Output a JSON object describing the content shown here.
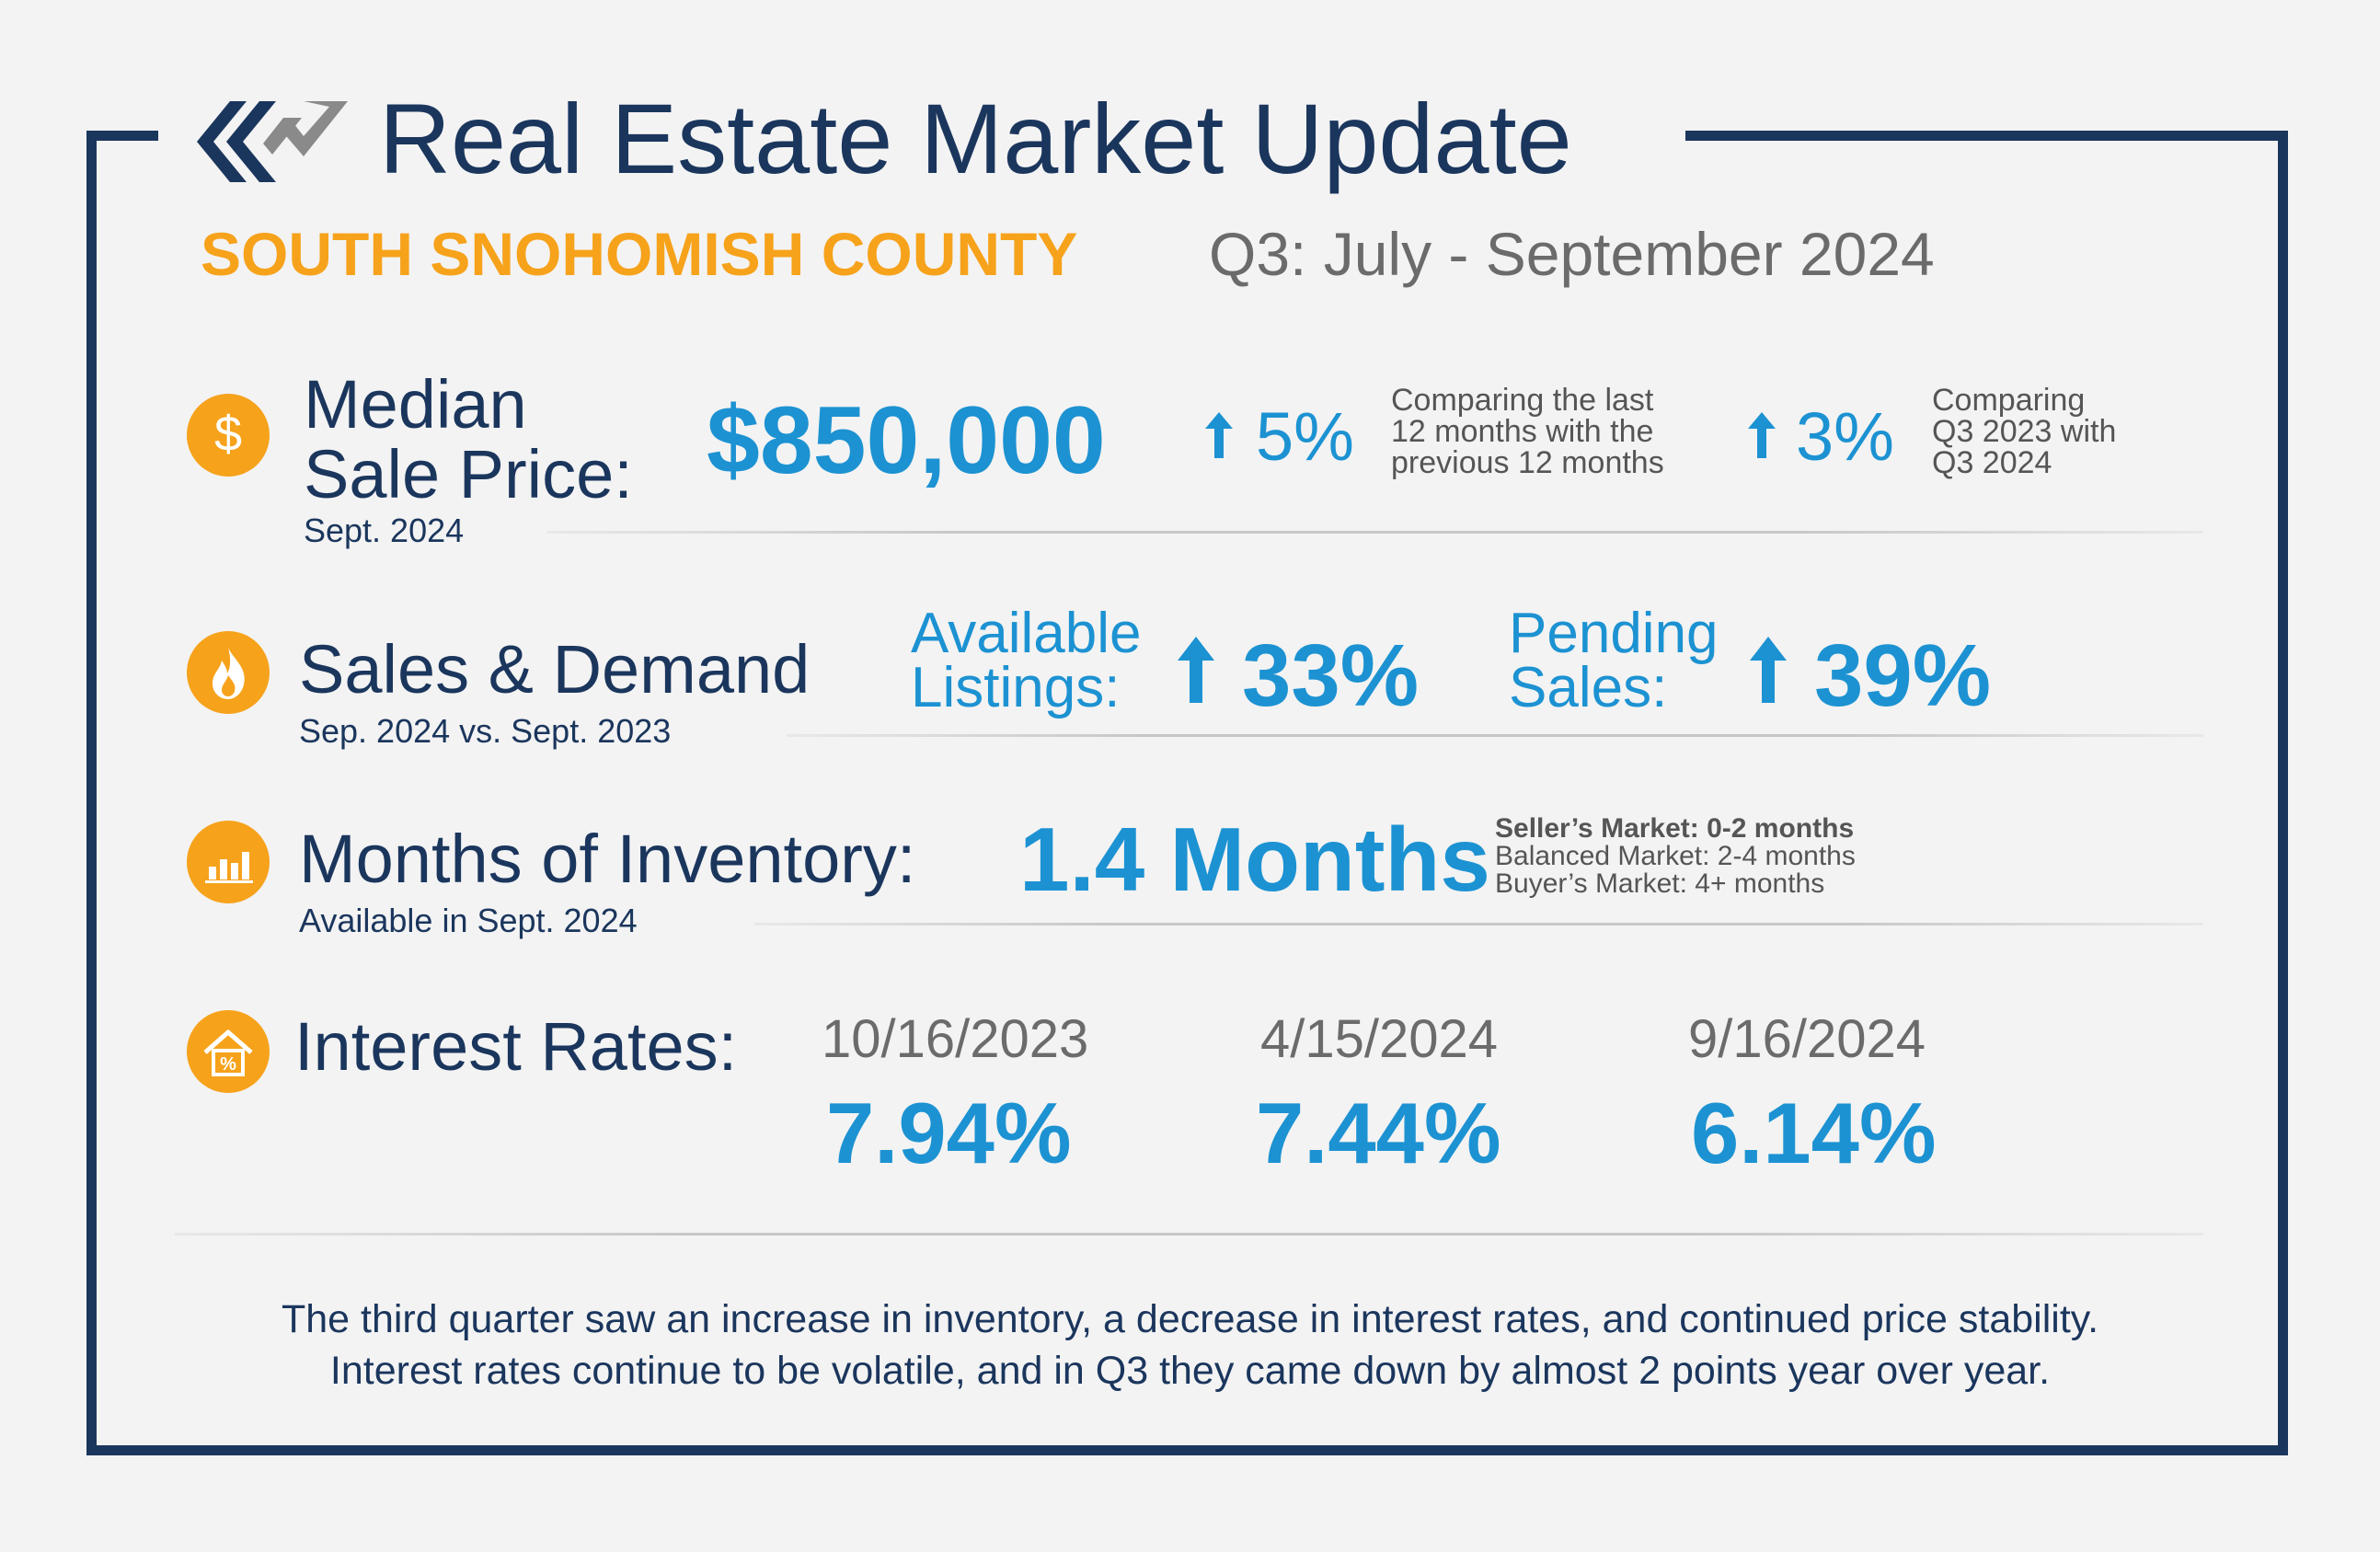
{
  "header": {
    "title": "Real Estate Market Update",
    "county": "SOUTH SNOHOMISH COUNTY",
    "period": "Q3: July - September 2024"
  },
  "colors": {
    "navy": "#1b365d",
    "orange": "#f6a21b",
    "blue": "#1c92d2",
    "gray": "#6b6b6b"
  },
  "median_sale_price": {
    "icon": "dollar-icon",
    "label_line1": "Median",
    "label_line2": "Sale Price:",
    "sublabel": "Sept. 2024",
    "value": "$850,000",
    "change1": {
      "value": "5%",
      "note_line1": "Comparing the last",
      "note_line2": "12 months with the",
      "note_line3": "previous 12 months"
    },
    "change2": {
      "value": "3%",
      "note_line1": "Comparing",
      "note_line2": "Q3 2023 with",
      "note_line3": "Q3 2024"
    }
  },
  "sales_demand": {
    "icon": "flame-icon",
    "label": "Sales & Demand",
    "sublabel": "Sep. 2024 vs. Sept. 2023",
    "available": {
      "label_line1": "Available",
      "label_line2": "Listings:",
      "value": "33%"
    },
    "pending": {
      "label_line1": "Pending",
      "label_line2": "Sales:",
      "value": "39%"
    }
  },
  "inventory": {
    "icon": "bar-chart-icon",
    "label": "Months of Inventory:",
    "sublabel": "Available in Sept. 2024",
    "value": "1.4 Months",
    "note_line1": "Seller’s Market: 0-2 months",
    "note_line2": "Balanced Market: 2-4 months",
    "note_line3": "Buyer’s Market: 4+ months"
  },
  "interest_rates": {
    "icon": "house-percent-icon",
    "label": "Interest Rates:",
    "rates": [
      {
        "date": "10/16/2023",
        "rate": "7.94%"
      },
      {
        "date": "4/15/2024",
        "rate": "7.44%"
      },
      {
        "date": "9/16/2024",
        "rate": "6.14%"
      }
    ]
  },
  "summary": {
    "line1": "The third quarter saw an increase in inventory, a decrease in interest rates, and continued price stability.",
    "line2": "Interest rates continue to be volatile, and in Q3 they came down by almost 2 points year over year."
  }
}
